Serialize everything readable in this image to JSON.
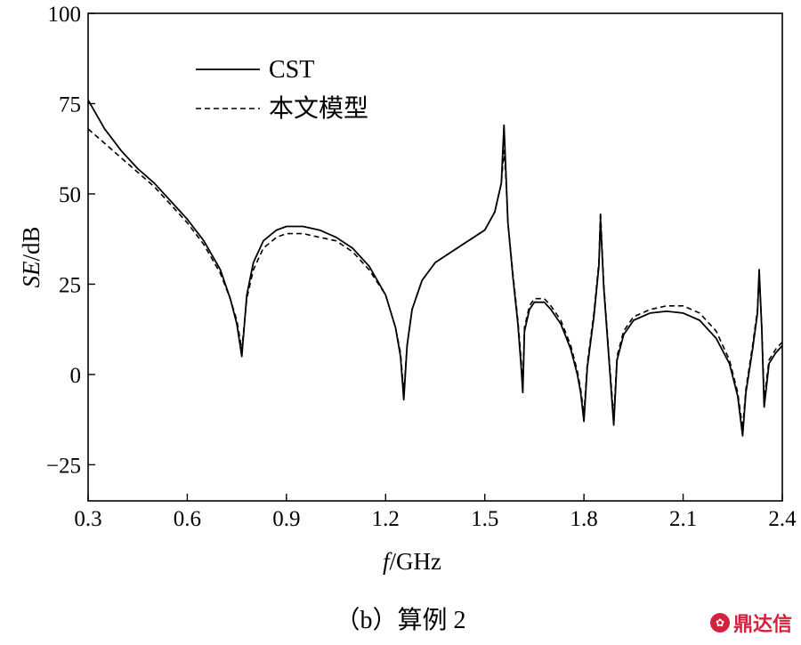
{
  "chart_data": {
    "type": "line",
    "title": "",
    "xlabel": "f",
    "xlabel_unit": "/GHz",
    "ylabel": "SE",
    "ylabel_unit": "/dB",
    "xlim": [
      0.3,
      2.4
    ],
    "ylim": [
      -35,
      100
    ],
    "xticks": [
      0.3,
      0.6,
      0.9,
      1.2,
      1.5,
      1.8,
      2.1,
      2.4
    ],
    "xtick_labels": [
      "0.3",
      "0.6",
      "0.9",
      "1.2",
      "1.5",
      "1.8",
      "2.1",
      "2.4"
    ],
    "yticks": [
      -25,
      0,
      25,
      50,
      75,
      100
    ],
    "ytick_labels": [
      "−25",
      "0",
      "25",
      "50",
      "75",
      "100"
    ],
    "grid": false,
    "legend_position": "top-left",
    "series": [
      {
        "name": "CST",
        "style": "solid",
        "color": "#000000",
        "x": [
          0.3,
          0.35,
          0.4,
          0.45,
          0.5,
          0.55,
          0.6,
          0.65,
          0.7,
          0.73,
          0.75,
          0.765,
          0.78,
          0.8,
          0.83,
          0.87,
          0.9,
          0.95,
          1.0,
          1.05,
          1.1,
          1.15,
          1.2,
          1.23,
          1.245,
          1.255,
          1.265,
          1.28,
          1.31,
          1.35,
          1.4,
          1.45,
          1.5,
          1.53,
          1.55,
          1.558,
          1.563,
          1.57,
          1.585,
          1.6,
          1.61,
          1.615,
          1.62,
          1.635,
          1.65,
          1.68,
          1.7,
          1.73,
          1.76,
          1.78,
          1.79,
          1.8,
          1.81,
          1.83,
          1.845,
          1.85,
          1.86,
          1.875,
          1.89,
          1.9,
          1.92,
          1.95,
          2.0,
          2.05,
          2.1,
          2.15,
          2.2,
          2.24,
          2.265,
          2.28,
          2.29,
          2.31,
          2.325,
          2.33,
          2.338,
          2.345,
          2.36,
          2.38,
          2.4
        ],
        "values": [
          76,
          68,
          62,
          57,
          53,
          48,
          43,
          37,
          29,
          21,
          14,
          5,
          22,
          31,
          37,
          40,
          41,
          41,
          40,
          38,
          35,
          30,
          22,
          13,
          5,
          -7,
          8,
          18,
          26,
          31,
          34,
          37,
          40,
          45,
          53,
          69,
          58,
          42,
          27,
          14,
          2,
          -5,
          12,
          18,
          20,
          20,
          18,
          14,
          7,
          0,
          -5,
          -13,
          2,
          16,
          30,
          43,
          24,
          5,
          -14,
          4,
          11,
          15,
          17,
          17.5,
          17,
          15,
          10,
          3,
          -6,
          -17,
          -5,
          7,
          17,
          29,
          12,
          -9,
          3,
          6,
          8
        ]
      },
      {
        "name": "本文模型",
        "style": "dashed",
        "color": "#000000",
        "x": [
          0.3,
          0.35,
          0.4,
          0.45,
          0.5,
          0.55,
          0.6,
          0.65,
          0.7,
          0.73,
          0.75,
          0.765,
          0.78,
          0.8,
          0.83,
          0.87,
          0.9,
          0.95,
          1.0,
          1.05,
          1.1,
          1.15,
          1.2,
          1.23,
          1.245,
          1.255,
          1.265,
          1.28,
          1.31,
          1.35,
          1.4,
          1.45,
          1.5,
          1.53,
          1.55,
          1.558,
          1.563,
          1.57,
          1.585,
          1.6,
          1.61,
          1.615,
          1.62,
          1.635,
          1.65,
          1.68,
          1.7,
          1.73,
          1.76,
          1.78,
          1.79,
          1.8,
          1.81,
          1.83,
          1.845,
          1.85,
          1.86,
          1.875,
          1.89,
          1.9,
          1.92,
          1.95,
          2.0,
          2.05,
          2.1,
          2.15,
          2.2,
          2.24,
          2.265,
          2.28,
          2.29,
          2.31,
          2.325,
          2.33,
          2.338,
          2.345,
          2.36,
          2.38,
          2.4
        ],
        "values": [
          68,
          64,
          60,
          56,
          52,
          47,
          42,
          36,
          28,
          21,
          15,
          7,
          21,
          29,
          35,
          38,
          39,
          39,
          38,
          37,
          34,
          29,
          22,
          13,
          6,
          -5,
          8,
          18,
          26,
          31,
          34,
          37,
          40,
          45,
          53,
          62,
          56,
          42,
          28,
          15,
          4,
          -3,
          13,
          19,
          21,
          21,
          19,
          15,
          8,
          1,
          -4,
          -11,
          3,
          17,
          31,
          45,
          25,
          6,
          -12,
          5,
          12,
          16,
          18,
          19,
          19,
          17,
          12,
          4,
          -5,
          -15,
          -4,
          8,
          18,
          28,
          13,
          -7,
          4,
          7,
          9
        ]
      }
    ]
  },
  "caption": "（b）算例 2",
  "watermark": "鼎达信",
  "watermark_icon": "logo-icon"
}
